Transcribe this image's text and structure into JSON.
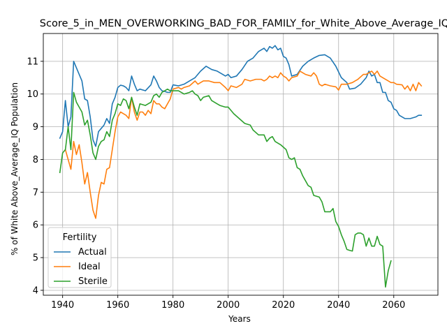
{
  "chart_data": {
    "type": "line",
    "title": "Score_5_in_MEN_OVERWORKING_BAD_FOR_FAMILY_for_White_Above_Average_IQ",
    "xlabel": "Years",
    "ylabel": "% of White Above_Average_IQ Population",
    "xlim": [
      1933,
      2076
    ],
    "ylim": [
      3.85,
      11.85
    ],
    "x_ticks": [
      1940,
      1960,
      1980,
      2000,
      2020,
      2040,
      2060
    ],
    "y_ticks": [
      4,
      5,
      6,
      7,
      8,
      9,
      10,
      11
    ],
    "grid": true,
    "legend": {
      "title": "Fertility",
      "placement": "lower-left"
    },
    "series": [
      {
        "name": "Actual",
        "color": "#1f77b4",
        "points": [
          [
            1939,
            8.65
          ],
          [
            1940,
            8.85
          ],
          [
            1941,
            9.8
          ],
          [
            1942,
            9.0
          ],
          [
            1943,
            9.3
          ],
          [
            1944,
            11.0
          ],
          [
            1945,
            10.8
          ],
          [
            1946,
            10.6
          ],
          [
            1947,
            10.4
          ],
          [
            1948,
            9.85
          ],
          [
            1949,
            9.8
          ],
          [
            1950,
            9.3
          ],
          [
            1951,
            8.6
          ],
          [
            1952,
            8.4
          ],
          [
            1953,
            8.85
          ],
          [
            1954,
            8.95
          ],
          [
            1955,
            9.05
          ],
          [
            1956,
            9.25
          ],
          [
            1957,
            9.1
          ],
          [
            1958,
            9.7
          ],
          [
            1959,
            9.9
          ],
          [
            1960,
            10.2
          ],
          [
            1961,
            10.27
          ],
          [
            1962,
            10.25
          ],
          [
            1963,
            10.2
          ],
          [
            1964,
            10.1
          ],
          [
            1965,
            10.55
          ],
          [
            1966,
            10.3
          ],
          [
            1967,
            10.1
          ],
          [
            1968,
            10.15
          ],
          [
            1970,
            10.1
          ],
          [
            1972,
            10.28
          ],
          [
            1973,
            10.55
          ],
          [
            1974,
            10.4
          ],
          [
            1975,
            10.2
          ],
          [
            1976,
            10.1
          ],
          [
            1977,
            10.08
          ],
          [
            1978,
            10.05
          ],
          [
            1979,
            10.05
          ],
          [
            1980,
            10.28
          ],
          [
            1982,
            10.25
          ],
          [
            1984,
            10.3
          ],
          [
            1986,
            10.4
          ],
          [
            1988,
            10.5
          ],
          [
            1990,
            10.7
          ],
          [
            1992,
            10.85
          ],
          [
            1994,
            10.75
          ],
          [
            1996,
            10.7
          ],
          [
            1998,
            10.6
          ],
          [
            1999,
            10.55
          ],
          [
            2000,
            10.6
          ],
          [
            2001,
            10.5
          ],
          [
            2003,
            10.55
          ],
          [
            2005,
            10.75
          ],
          [
            2007,
            11.0
          ],
          [
            2009,
            11.1
          ],
          [
            2011,
            11.3
          ],
          [
            2013,
            11.4
          ],
          [
            2014,
            11.3
          ],
          [
            2015,
            11.45
          ],
          [
            2016,
            11.4
          ],
          [
            2017,
            11.48
          ],
          [
            2018,
            11.35
          ],
          [
            2019,
            11.4
          ],
          [
            2020,
            11.15
          ],
          [
            2021,
            11.1
          ],
          [
            2022,
            10.9
          ],
          [
            2023,
            10.55
          ],
          [
            2025,
            10.6
          ],
          [
            2027,
            10.85
          ],
          [
            2029,
            11.0
          ],
          [
            2031,
            11.1
          ],
          [
            2033,
            11.18
          ],
          [
            2035,
            11.2
          ],
          [
            2037,
            11.1
          ],
          [
            2039,
            10.85
          ],
          [
            2041,
            10.5
          ],
          [
            2043,
            10.35
          ],
          [
            2044,
            10.15
          ],
          [
            2046,
            10.18
          ],
          [
            2048,
            10.3
          ],
          [
            2050,
            10.5
          ],
          [
            2051,
            10.7
          ],
          [
            2052,
            10.55
          ],
          [
            2053,
            10.6
          ],
          [
            2054,
            10.35
          ],
          [
            2055,
            10.35
          ],
          [
            2056,
            10.05
          ],
          [
            2057,
            10.05
          ],
          [
            2058,
            9.8
          ],
          [
            2059,
            9.75
          ],
          [
            2060,
            9.55
          ],
          [
            2061,
            9.5
          ],
          [
            2062,
            9.35
          ],
          [
            2064,
            9.25
          ],
          [
            2066,
            9.25
          ],
          [
            2068,
            9.3
          ],
          [
            2069,
            9.35
          ],
          [
            2070,
            9.35
          ]
        ]
      },
      {
        "name": "Ideal",
        "color": "#ff7f0e",
        "points": [
          [
            1941,
            8.3
          ],
          [
            1943,
            7.7
          ],
          [
            1944,
            8.55
          ],
          [
            1945,
            8.15
          ],
          [
            1946,
            8.45
          ],
          [
            1947,
            7.9
          ],
          [
            1948,
            7.25
          ],
          [
            1949,
            7.6
          ],
          [
            1950,
            7.0
          ],
          [
            1951,
            6.45
          ],
          [
            1952,
            6.2
          ],
          [
            1953,
            6.9
          ],
          [
            1954,
            7.3
          ],
          [
            1955,
            7.25
          ],
          [
            1956,
            7.7
          ],
          [
            1957,
            7.75
          ],
          [
            1958,
            8.3
          ],
          [
            1959,
            8.85
          ],
          [
            1960,
            9.3
          ],
          [
            1961,
            9.45
          ],
          [
            1962,
            9.4
          ],
          [
            1963,
            9.35
          ],
          [
            1964,
            9.25
          ],
          [
            1965,
            9.9
          ],
          [
            1966,
            9.45
          ],
          [
            1967,
            9.2
          ],
          [
            1968,
            9.45
          ],
          [
            1969,
            9.45
          ],
          [
            1970,
            9.35
          ],
          [
            1971,
            9.5
          ],
          [
            1972,
            9.4
          ],
          [
            1973,
            9.8
          ],
          [
            1974,
            9.7
          ],
          [
            1975,
            9.7
          ],
          [
            1976,
            9.6
          ],
          [
            1977,
            9.55
          ],
          [
            1979,
            9.85
          ],
          [
            1980,
            10.15
          ],
          [
            1982,
            10.2
          ],
          [
            1983,
            10.15
          ],
          [
            1984,
            10.2
          ],
          [
            1986,
            10.25
          ],
          [
            1988,
            10.4
          ],
          [
            1989,
            10.3
          ],
          [
            1991,
            10.4
          ],
          [
            1993,
            10.4
          ],
          [
            1995,
            10.35
          ],
          [
            1997,
            10.35
          ],
          [
            1999,
            10.2
          ],
          [
            2000,
            10.1
          ],
          [
            2001,
            10.25
          ],
          [
            2003,
            10.2
          ],
          [
            2005,
            10.3
          ],
          [
            2006,
            10.45
          ],
          [
            2008,
            10.4
          ],
          [
            2010,
            10.45
          ],
          [
            2012,
            10.45
          ],
          [
            2013,
            10.4
          ],
          [
            2014,
            10.45
          ],
          [
            2015,
            10.55
          ],
          [
            2016,
            10.5
          ],
          [
            2017,
            10.55
          ],
          [
            2018,
            10.5
          ],
          [
            2019,
            10.65
          ],
          [
            2020,
            10.55
          ],
          [
            2021,
            10.5
          ],
          [
            2022,
            10.4
          ],
          [
            2023,
            10.5
          ],
          [
            2025,
            10.55
          ],
          [
            2026,
            10.7
          ],
          [
            2028,
            10.6
          ],
          [
            2030,
            10.55
          ],
          [
            2031,
            10.65
          ],
          [
            2032,
            10.55
          ],
          [
            2033,
            10.3
          ],
          [
            2034,
            10.25
          ],
          [
            2035,
            10.3
          ],
          [
            2037,
            10.25
          ],
          [
            2039,
            10.22
          ],
          [
            2040,
            10.12
          ],
          [
            2041,
            10.3
          ],
          [
            2043,
            10.3
          ],
          [
            2045,
            10.35
          ],
          [
            2046,
            10.4
          ],
          [
            2047,
            10.45
          ],
          [
            2049,
            10.6
          ],
          [
            2050,
            10.6
          ],
          [
            2052,
            10.7
          ],
          [
            2053,
            10.6
          ],
          [
            2054,
            10.7
          ],
          [
            2055,
            10.55
          ],
          [
            2056,
            10.5
          ],
          [
            2058,
            10.4
          ],
          [
            2059,
            10.35
          ],
          [
            2060,
            10.35
          ],
          [
            2061,
            10.3
          ],
          [
            2063,
            10.28
          ],
          [
            2064,
            10.15
          ],
          [
            2065,
            10.25
          ],
          [
            2066,
            10.1
          ],
          [
            2067,
            10.3
          ],
          [
            2068,
            10.1
          ],
          [
            2069,
            10.35
          ],
          [
            2070,
            10.25
          ]
        ]
      },
      {
        "name": "Sterile",
        "color": "#2ca02c",
        "points": [
          [
            1939,
            7.6
          ],
          [
            1940,
            8.2
          ],
          [
            1941,
            8.3
          ],
          [
            1942,
            9.0
          ],
          [
            1943,
            8.3
          ],
          [
            1944,
            10.05
          ],
          [
            1945,
            9.75
          ],
          [
            1946,
            9.6
          ],
          [
            1947,
            9.45
          ],
          [
            1948,
            9.05
          ],
          [
            1949,
            9.2
          ],
          [
            1950,
            8.75
          ],
          [
            1951,
            8.2
          ],
          [
            1952,
            8.0
          ],
          [
            1953,
            8.4
          ],
          [
            1954,
            8.55
          ],
          [
            1955,
            8.6
          ],
          [
            1956,
            8.85
          ],
          [
            1957,
            8.7
          ],
          [
            1958,
            9.2
          ],
          [
            1959,
            9.4
          ],
          [
            1960,
            9.7
          ],
          [
            1961,
            9.65
          ],
          [
            1962,
            9.85
          ],
          [
            1963,
            9.8
          ],
          [
            1964,
            9.55
          ],
          [
            1965,
            9.9
          ],
          [
            1966,
            9.6
          ],
          [
            1967,
            9.35
          ],
          [
            1968,
            9.7
          ],
          [
            1970,
            9.65
          ],
          [
            1972,
            9.75
          ],
          [
            1973,
            9.95
          ],
          [
            1974,
            10.0
          ],
          [
            1975,
            9.9
          ],
          [
            1976,
            10.05
          ],
          [
            1977,
            10.1
          ],
          [
            1978,
            10.15
          ],
          [
            1979,
            10.1
          ],
          [
            1980,
            10.1
          ],
          [
            1982,
            10.1
          ],
          [
            1984,
            10.0
          ],
          [
            1986,
            10.05
          ],
          [
            1987,
            10.1
          ],
          [
            1988,
            10.0
          ],
          [
            1989,
            9.95
          ],
          [
            1990,
            9.8
          ],
          [
            1991,
            9.9
          ],
          [
            1993,
            9.95
          ],
          [
            1994,
            9.8
          ],
          [
            1996,
            9.7
          ],
          [
            1997,
            9.65
          ],
          [
            1999,
            9.6
          ],
          [
            2000,
            9.6
          ],
          [
            2001,
            9.5
          ],
          [
            2002,
            9.4
          ],
          [
            2004,
            9.25
          ],
          [
            2006,
            9.1
          ],
          [
            2008,
            9.05
          ],
          [
            2009,
            8.9
          ],
          [
            2011,
            8.75
          ],
          [
            2013,
            8.75
          ],
          [
            2014,
            8.55
          ],
          [
            2015,
            8.65
          ],
          [
            2016,
            8.7
          ],
          [
            2017,
            8.55
          ],
          [
            2019,
            8.45
          ],
          [
            2021,
            8.3
          ],
          [
            2022,
            8.05
          ],
          [
            2023,
            8.0
          ],
          [
            2024,
            8.05
          ],
          [
            2025,
            7.75
          ],
          [
            2026,
            7.7
          ],
          [
            2027,
            7.5
          ],
          [
            2028,
            7.35
          ],
          [
            2029,
            7.2
          ],
          [
            2030,
            7.15
          ],
          [
            2031,
            6.9
          ],
          [
            2033,
            6.85
          ],
          [
            2034,
            6.7
          ],
          [
            2035,
            6.4
          ],
          [
            2036,
            6.4
          ],
          [
            2037,
            6.4
          ],
          [
            2038,
            6.5
          ],
          [
            2039,
            6.1
          ],
          [
            2040,
            5.95
          ],
          [
            2041,
            5.7
          ],
          [
            2042,
            5.5
          ],
          [
            2043,
            5.25
          ],
          [
            2044,
            5.22
          ],
          [
            2045,
            5.2
          ],
          [
            2046,
            5.7
          ],
          [
            2047,
            5.75
          ],
          [
            2048,
            5.75
          ],
          [
            2049,
            5.7
          ],
          [
            2050,
            5.35
          ],
          [
            2051,
            5.6
          ],
          [
            2052,
            5.35
          ],
          [
            2053,
            5.35
          ],
          [
            2054,
            5.65
          ],
          [
            2055,
            5.4
          ],
          [
            2056,
            5.35
          ],
          [
            2057,
            4.1
          ],
          [
            2058,
            4.6
          ],
          [
            2059,
            4.9
          ]
        ]
      }
    ]
  }
}
